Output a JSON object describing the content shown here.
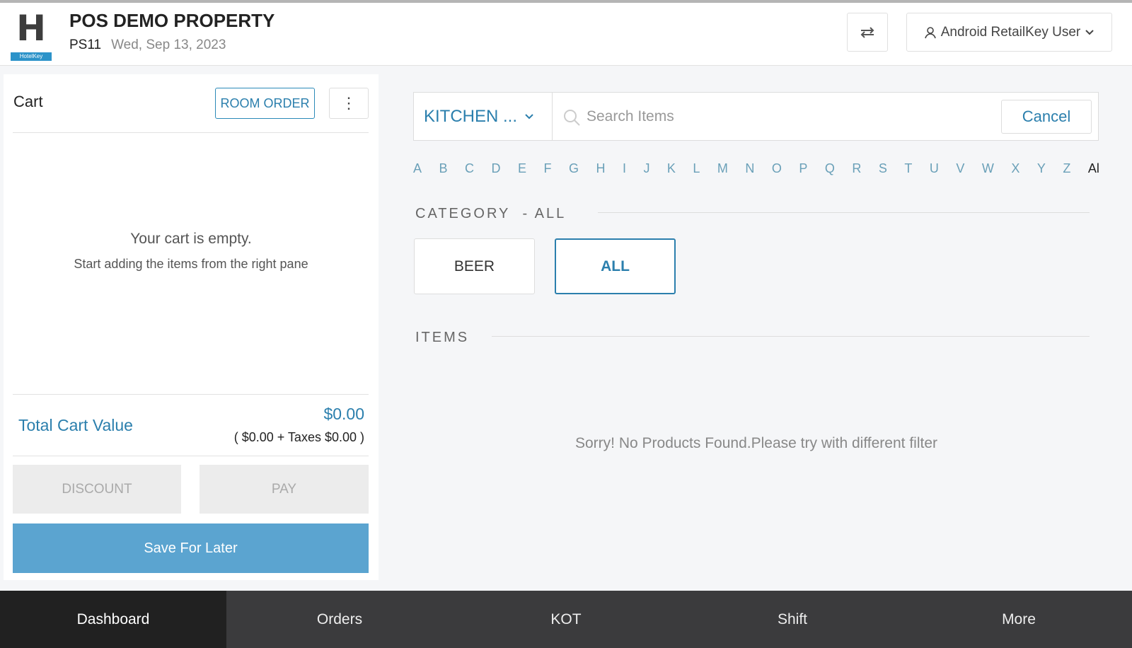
{
  "header": {
    "logo_text": "H",
    "logo_brand": "HotelKey",
    "title": "POS DEMO PROPERTY",
    "property_code": "PS11",
    "date": "Wed, Sep 13, 2023",
    "swap_icon": "swap-arrows-icon",
    "user_icon": "user-icon",
    "user_label": "Android RetailKey User"
  },
  "cart": {
    "title": "Cart",
    "room_order_label": "ROOM ORDER",
    "empty_title": "Your cart is empty.",
    "empty_subtitle": "Start adding the items from the right pane",
    "total_label": "Total Cart Value",
    "total_value": "$0.00",
    "breakdown": "( $0.00 + Taxes $0.00 )",
    "discount_label": "DISCOUNT",
    "pay_label": "PAY",
    "save_label": "Save For Later"
  },
  "search": {
    "outlet": "KITCHEN ...",
    "placeholder": "Search Items",
    "value": "",
    "cancel_label": "Cancel"
  },
  "letters": [
    "A",
    "B",
    "C",
    "D",
    "E",
    "F",
    "G",
    "H",
    "I",
    "J",
    "K",
    "L",
    "M",
    "N",
    "O",
    "P",
    "Q",
    "R",
    "S",
    "T",
    "U",
    "V",
    "W",
    "X",
    "Y",
    "Z",
    "Al"
  ],
  "category": {
    "heading": "CATEGORY",
    "selected_suffix": "- ALL",
    "items": [
      {
        "label": "BEER",
        "active": false
      },
      {
        "label": "ALL",
        "active": true
      }
    ]
  },
  "items": {
    "heading": "ITEMS",
    "empty_message": "Sorry! No Products Found.Please try with different filter"
  },
  "nav": {
    "items": [
      {
        "label": "Dashboard",
        "active": true
      },
      {
        "label": "Orders"
      },
      {
        "label": "KOT"
      },
      {
        "label": "Shift"
      },
      {
        "label": "More"
      }
    ]
  },
  "colors": {
    "accent": "#2b7fad",
    "save_button": "#5ba4d0",
    "nav_bg": "#3b3b3d",
    "nav_active": "#212121"
  }
}
